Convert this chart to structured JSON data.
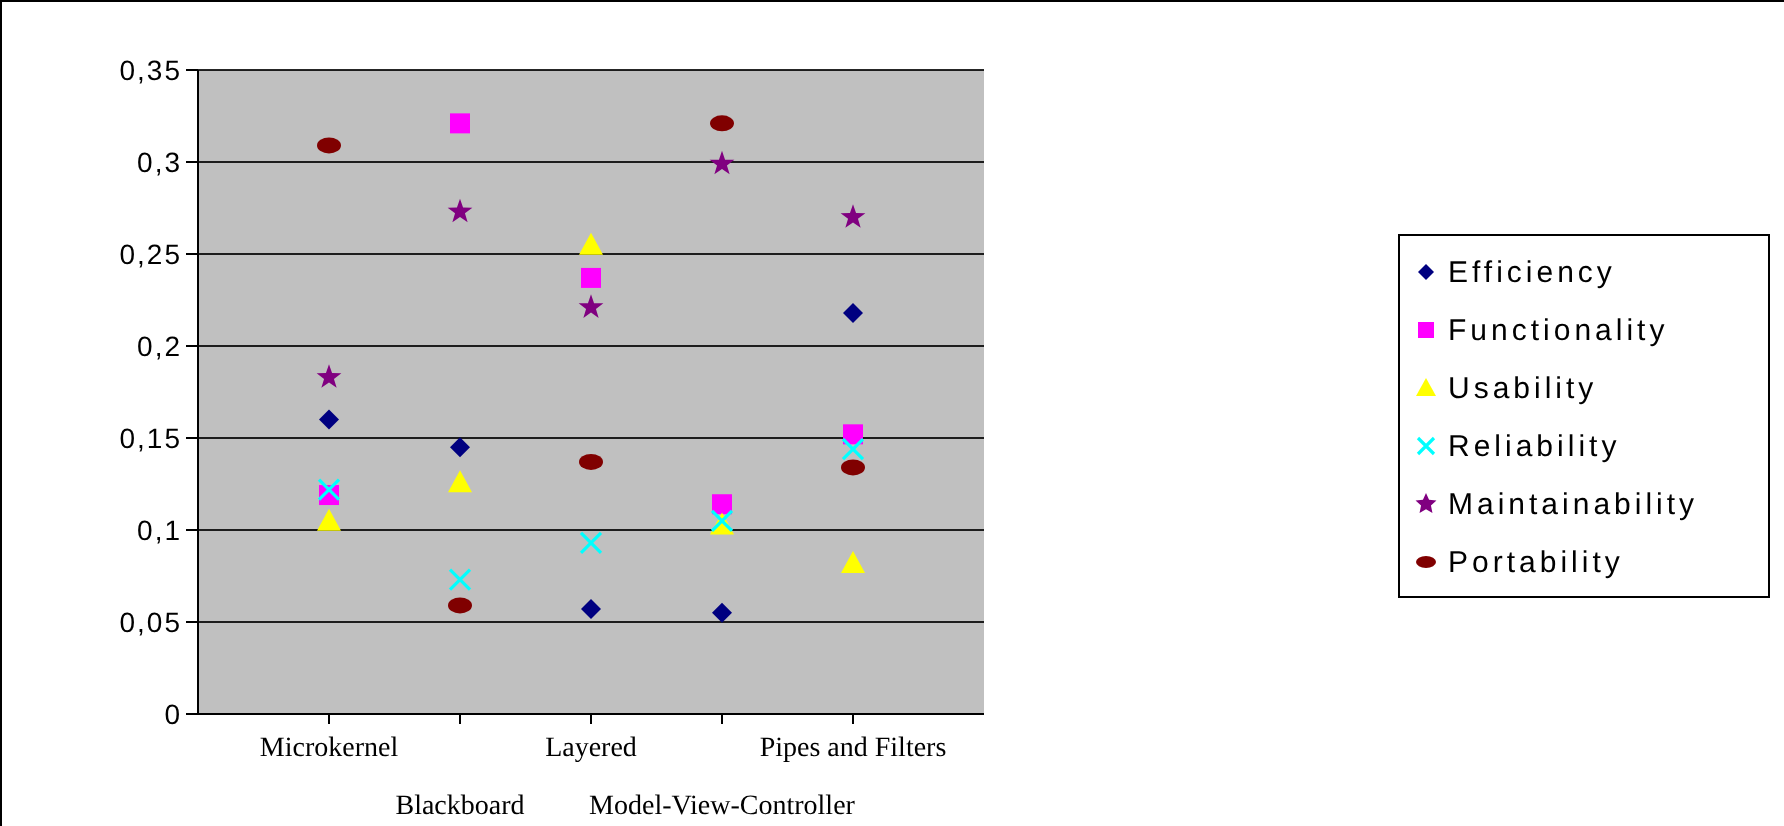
{
  "chart_data": {
    "type": "scatter",
    "categories": [
      "Microkernel",
      "Blackboard",
      "Layered",
      "Model-View-Controller",
      "Pipes and Filters"
    ],
    "ylim": [
      0,
      0.35
    ],
    "yticks": [
      {
        "value": 0,
        "label": "0"
      },
      {
        "value": 0.05,
        "label": "0,05"
      },
      {
        "value": 0.1,
        "label": "0,1"
      },
      {
        "value": 0.15,
        "label": "0,15"
      },
      {
        "value": 0.2,
        "label": "0,2"
      },
      {
        "value": 0.25,
        "label": "0,25"
      },
      {
        "value": 0.3,
        "label": "0,3"
      },
      {
        "value": 0.35,
        "label": "0,35"
      }
    ],
    "grid": "y",
    "legend": "right",
    "series": [
      {
        "name": "Efficiency",
        "color": "#000080",
        "marker": "diamond",
        "values": [
          0.16,
          0.145,
          0.057,
          0.055,
          0.218
        ]
      },
      {
        "name": "Functionality",
        "color": "#ff00ff",
        "marker": "square",
        "values": [
          0.119,
          0.321,
          0.237,
          0.114,
          0.152
        ]
      },
      {
        "name": "Usability",
        "color": "#ffff00",
        "marker": "triangle",
        "values": [
          0.105,
          0.126,
          0.255,
          0.103,
          0.082
        ]
      },
      {
        "name": "Reliability",
        "color": "#00ffff",
        "marker": "cross",
        "values": [
          0.122,
          0.073,
          0.093,
          0.105,
          0.144
        ]
      },
      {
        "name": "Maintainability",
        "color": "#800080",
        "marker": "star",
        "values": [
          0.183,
          0.273,
          0.221,
          0.299,
          0.27
        ]
      },
      {
        "name": "Portability",
        "color": "#800000",
        "marker": "circle",
        "values": [
          0.309,
          0.059,
          0.137,
          0.321,
          0.134
        ]
      }
    ]
  }
}
